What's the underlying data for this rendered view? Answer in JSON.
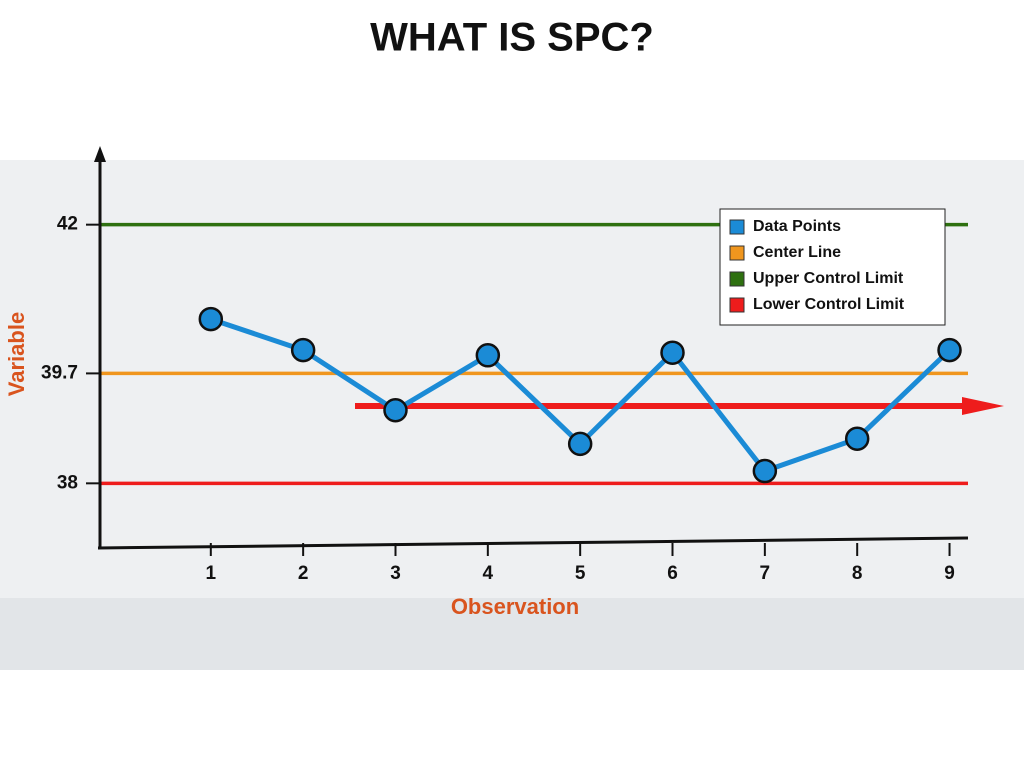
{
  "chart_data": {
    "type": "line",
    "title": "WHAT IS SPC?",
    "x_label": "Observation",
    "y_label": "Variable",
    "x": [
      1,
      2,
      3,
      4,
      5,
      6,
      7,
      8,
      9
    ],
    "series": [
      {
        "name": "Data Points",
        "color": "#1b8bd6",
        "values": [
          40.54,
          40.06,
          39.13,
          39.98,
          38.61,
          40.02,
          38.19,
          38.69,
          40.06
        ]
      }
    ],
    "reference_lines": [
      {
        "name": "Center Line",
        "color": "#f0961e",
        "value": 39.7
      },
      {
        "name": "Upper Control Limit",
        "color": "#2e7010",
        "value": 42
      },
      {
        "name": "Lower Control Limit",
        "color": "#ee1c1c",
        "value": 38
      }
    ],
    "xlim": [
      -0.2,
      9.2
    ],
    "ylim": [
      37,
      43
    ],
    "xticks": [
      1,
      2,
      3,
      4,
      5,
      6,
      7,
      8,
      9
    ],
    "yticks": [
      38,
      39.7,
      42
    ],
    "legend": "upper right"
  }
}
